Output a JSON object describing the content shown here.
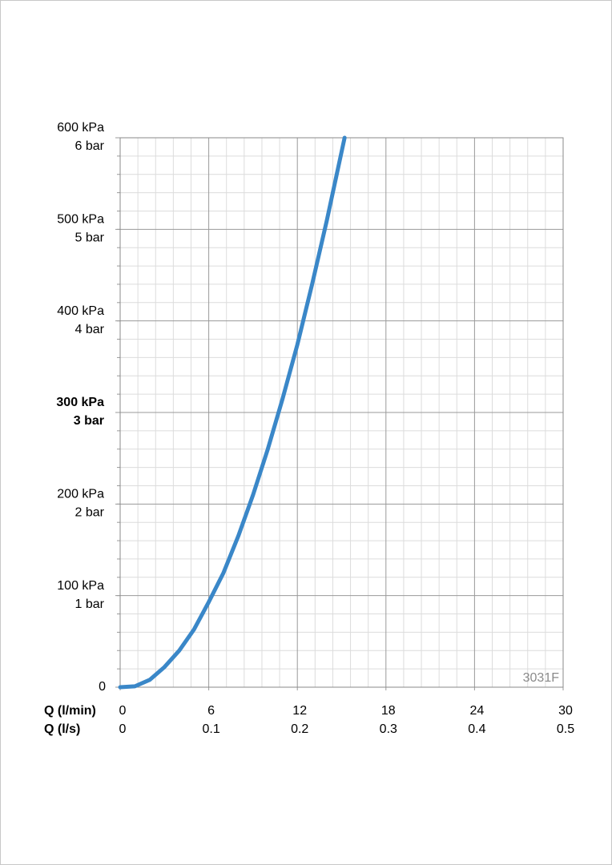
{
  "chart_data": {
    "type": "line",
    "x_axis_label": "Q (l/min)",
    "x2_axis_label": "Q (l/s)",
    "annotation": "3031F",
    "x": [
      0,
      1,
      2,
      3,
      4,
      5,
      6,
      7,
      8,
      9,
      10,
      11,
      12,
      13,
      14,
      15.2
    ],
    "series": [
      {
        "name": "3031F",
        "color": "#3a87c8",
        "values": [
          0,
          1,
          8,
          22,
          40,
          63,
          93,
          125,
          165,
          210,
          260,
          315,
          374,
          440,
          510,
          600
        ]
      }
    ],
    "xlim": [
      0,
      30
    ],
    "xticks": [
      0,
      6,
      12,
      18,
      24,
      30
    ],
    "x2lim": [
      0,
      0.5
    ],
    "x2ticks": [
      0,
      0.1,
      0.2,
      0.3,
      0.4,
      0.5
    ],
    "ylim": [
      0,
      600
    ],
    "yticks": [
      0,
      {
        "value": 100,
        "label": "100 kPa"
      },
      {
        "value": 200,
        "label": "200 kPa"
      },
      {
        "value": 300,
        "label": "300 kPa"
      },
      {
        "value": 400,
        "label": "400 kPa"
      },
      {
        "value": 500,
        "label": "500 kPa"
      },
      {
        "value": 600,
        "label": "600 kPa"
      }
    ],
    "y2lim": [
      0,
      6
    ],
    "y2ticks": [
      {
        "value": 1,
        "label": "1 bar"
      },
      {
        "value": 2,
        "label": "2 bar"
      },
      {
        "value": 3,
        "label": "3 bar"
      },
      {
        "value": 4,
        "label": "4 bar"
      },
      {
        "value": 5,
        "label": "5 bar"
      },
      {
        "value": 6,
        "label": "6 bar"
      }
    ],
    "emphasized_ytick": 3,
    "grid": true,
    "minor_divisions": 5
  }
}
